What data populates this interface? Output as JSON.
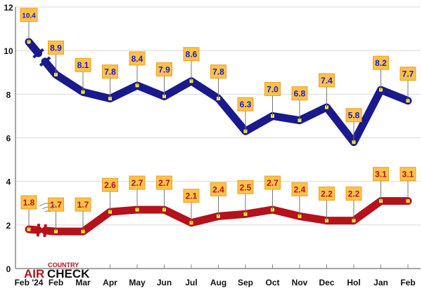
{
  "chart_data": {
    "type": "line",
    "title": "",
    "xlabel": "",
    "ylabel": "",
    "ylim": [
      0,
      12
    ],
    "yticks": [
      0,
      2,
      4,
      6,
      8,
      10,
      12
    ],
    "grid": true,
    "categories": [
      "Feb '24",
      "Feb",
      "Mar",
      "Apr",
      "May",
      "Jun",
      "Jul",
      "Aug",
      "Sep",
      "Oct",
      "Nov",
      "Dec",
      "Hol",
      "Jan",
      "Feb"
    ],
    "series": [
      {
        "name": "blue",
        "color": "#1a1a8c",
        "label_color": "#1a1acc",
        "values": [
          10.4,
          8.9,
          8.1,
          7.8,
          8.4,
          7.9,
          8.6,
          7.8,
          6.3,
          7.0,
          6.8,
          7.4,
          5.8,
          8.2,
          7.7
        ],
        "labels": [
          "10.4",
          "8.9",
          "8.1",
          "7.8",
          "8.4",
          "7.9",
          "8.6",
          "7.8",
          "6.3",
          "7.0",
          "6.8",
          "7.4",
          "5.8",
          "8.2",
          "7.7"
        ]
      },
      {
        "name": "red",
        "color": "#b5121b",
        "label_color": "#b5121b",
        "values": [
          1.8,
          1.7,
          1.7,
          2.6,
          2.7,
          2.7,
          2.1,
          2.4,
          2.5,
          2.7,
          2.4,
          2.2,
          2.2,
          3.1,
          3.1
        ],
        "labels": [
          "1.8",
          "1.7",
          "1.7",
          "2.6",
          "2.7",
          "2.7",
          "2.1",
          "2.4",
          "2.5",
          "2.7",
          "2.4",
          "2.2",
          "2.2",
          "3.1",
          "3.1"
        ]
      }
    ],
    "axis_break_after_first": true
  },
  "logo": {
    "line1": "COUNTRY",
    "line2a": "AIR",
    "line2b": "CHECK"
  }
}
